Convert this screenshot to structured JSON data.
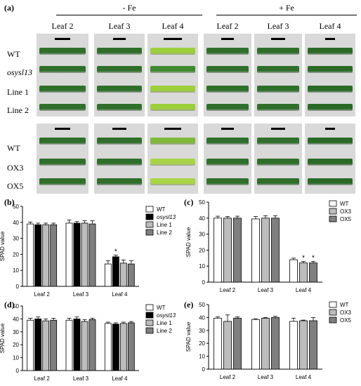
{
  "panel_labels": [
    "(a)",
    "(b)",
    "(c)",
    "(d)",
    "(e)"
  ],
  "photo_panel": {
    "conditions": [
      "- Fe",
      "+ Fe"
    ],
    "leaf_headers": [
      "Leaf 2",
      "Leaf 3",
      "Leaf 4",
      "Leaf 2",
      "Leaf 3",
      "Leaf 4"
    ],
    "top_rows": [
      "WT",
      "osysl13",
      "Line 1",
      "Line 2"
    ],
    "bottom_rows": [
      "WT",
      "OX3",
      "OX5"
    ],
    "colors": {
      "green": "#2f6f2a",
      "chlorotic": "#9ccf3a",
      "background": "#d9d9d9"
    }
  },
  "chart_data": [
    {
      "id": "b",
      "type": "bar",
      "ylabel": "SPAD value",
      "xlabel": "",
      "ylim": [
        0,
        50
      ],
      "yticks": [
        0,
        10,
        20,
        30,
        40,
        50
      ],
      "categories": [
        "Leaf 2",
        "Leaf 3",
        "Leaf 4"
      ],
      "series": [
        {
          "name": "WT",
          "color": "#ffffff",
          "values": [
            39,
            39.5,
            14
          ],
          "errors": [
            1.2,
            2,
            2
          ]
        },
        {
          "name": "osysl13",
          "color": "#000000",
          "values": [
            38.5,
            39.5,
            18.5
          ],
          "errors": [
            1,
            1,
            1
          ]
        },
        {
          "name": "Line 1",
          "color": "#bdbdbd",
          "values": [
            38.5,
            39.5,
            14.5
          ],
          "errors": [
            1,
            1.5,
            2
          ]
        },
        {
          "name": "Line 2",
          "color": "#7f7f7f",
          "values": [
            38.5,
            39,
            14
          ],
          "errors": [
            1,
            2,
            2
          ]
        }
      ],
      "annotations": [
        {
          "category": "Leaf 4",
          "series": "osysl13",
          "text": "*"
        }
      ]
    },
    {
      "id": "c",
      "type": "bar",
      "ylabel": "SPAD value",
      "xlabel": "",
      "ylim": [
        0,
        50
      ],
      "yticks": [
        0,
        10,
        20,
        30,
        40,
        50
      ],
      "categories": [
        "Leaf 2",
        "Leaf 3",
        "Leaf 4"
      ],
      "series": [
        {
          "name": "WT",
          "color": "#ffffff",
          "values": [
            40,
            39.5,
            14
          ],
          "errors": [
            1.2,
            1.5,
            1
          ]
        },
        {
          "name": "OX3",
          "color": "#bdbdbd",
          "values": [
            40,
            40,
            12
          ],
          "errors": [
            1,
            1.5,
            1
          ]
        },
        {
          "name": "OX5",
          "color": "#7f7f7f",
          "values": [
            40,
            40,
            12
          ],
          "errors": [
            1.2,
            1.5,
            1
          ]
        }
      ],
      "annotations": [
        {
          "category": "Leaf 4",
          "series": "OX3",
          "text": "*"
        },
        {
          "category": "Leaf 4",
          "series": "OX5",
          "text": "*"
        }
      ]
    },
    {
      "id": "d",
      "type": "bar",
      "ylabel": "SPAD value",
      "xlabel": "",
      "ylim": [
        0,
        50
      ],
      "yticks": [
        0,
        10,
        20,
        30,
        40,
        50
      ],
      "categories": [
        "Leaf 2",
        "Leaf 3",
        "Leaf 4"
      ],
      "series": [
        {
          "name": "WT",
          "color": "#ffffff",
          "values": [
            39,
            39,
            36.5
          ],
          "errors": [
            1.5,
            1.5,
            1
          ]
        },
        {
          "name": "osysl13",
          "color": "#000000",
          "values": [
            40,
            40,
            36
          ],
          "errors": [
            1.5,
            1.5,
            1
          ]
        },
        {
          "name": "Line 1",
          "color": "#bdbdbd",
          "values": [
            38.5,
            38,
            36.5
          ],
          "errors": [
            1.5,
            1.5,
            1
          ]
        },
        {
          "name": "Line 2",
          "color": "#7f7f7f",
          "values": [
            39,
            39.5,
            37
          ],
          "errors": [
            1.5,
            1,
            1
          ]
        }
      ],
      "annotations": []
    },
    {
      "id": "e",
      "type": "bar",
      "ylabel": "SPAD value",
      "xlabel": "",
      "ylim": [
        0,
        50
      ],
      "yticks": [
        0,
        10,
        20,
        30,
        40,
        50
      ],
      "categories": [
        "Leaf 2",
        "Leaf 3",
        "Leaf 4"
      ],
      "series": [
        {
          "name": "WT",
          "color": "#ffffff",
          "values": [
            39.5,
            38.5,
            37
          ],
          "errors": [
            1,
            0.5,
            2.5
          ]
        },
        {
          "name": "OX3",
          "color": "#bdbdbd",
          "values": [
            37,
            39.5,
            37.5
          ],
          "errors": [
            5,
            0.5,
            0.5
          ]
        },
        {
          "name": "OX5",
          "color": "#7f7f7f",
          "values": [
            39.5,
            40,
            37.5
          ],
          "errors": [
            1,
            1,
            2.5
          ]
        }
      ],
      "annotations": []
    }
  ]
}
